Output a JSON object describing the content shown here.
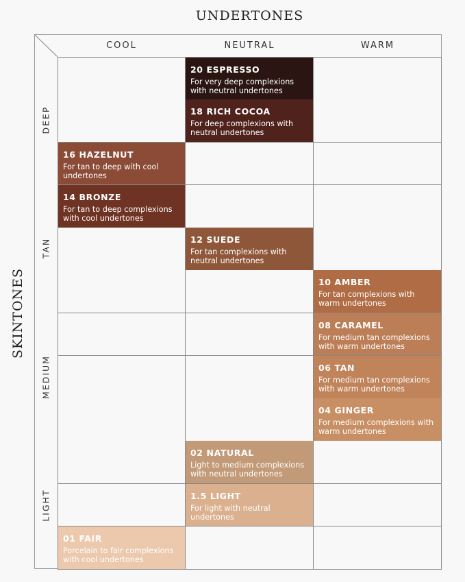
{
  "title_top": "UNDERTONES",
  "title_side": "SKINTONES",
  "columns": [
    "COOL",
    "NEUTRAL",
    "WARM"
  ],
  "row_groups": [
    {
      "label": "DEEP"
    },
    {
      "label": "TAN"
    },
    {
      "label": "MEDIUM"
    },
    {
      "label": "LIGHT"
    }
  ],
  "shades": [
    {
      "row": 1,
      "col": "NEUTRAL",
      "name": "20 ESPRESSO",
      "desc": "For very deep complexions with neutral undertones",
      "color": "#2a1512"
    },
    {
      "row": 2,
      "col": "NEUTRAL",
      "name": "18 RICH COCOA",
      "desc": "For deep complexions with neutral undertones",
      "color": "#4f231b"
    },
    {
      "row": 3,
      "col": "COOL",
      "name": "16 HAZELNUT",
      "desc": "For tan to deep with cool undertones",
      "color": "#8b4b37"
    },
    {
      "row": 4,
      "col": "COOL",
      "name": "14 BRONZE",
      "desc": "For tan to deep complexions with cool undertones",
      "color": "#6f3324"
    },
    {
      "row": 5,
      "col": "NEUTRAL",
      "name": "12 SUEDE",
      "desc": "For tan complexions with neutral undertones",
      "color": "#8f5739"
    },
    {
      "row": 6,
      "col": "WARM",
      "name": "10 AMBER",
      "desc": "For tan complexions with warm undertones",
      "color": "#b06c45"
    },
    {
      "row": 7,
      "col": "WARM",
      "name": "08 CARAMEL",
      "desc": "For medium tan complexions with warm undertones",
      "color": "#bc7e56"
    },
    {
      "row": 8,
      "col": "WARM",
      "name": "06 TAN",
      "desc": "For medium tan complexions with warm undertones",
      "color": "#c0835a"
    },
    {
      "row": 9,
      "col": "WARM",
      "name": "04 GINGER",
      "desc": "For medium complexions with warm undertones",
      "color": "#c98f64"
    },
    {
      "row": 10,
      "col": "NEUTRAL",
      "name": "02 NATURAL",
      "desc": "Light to medium complexions with neutral undertones",
      "color": "#c29a78"
    },
    {
      "row": 11,
      "col": "NEUTRAL",
      "name": "1.5 LIGHT",
      "desc": "For light with neutral undertones",
      "color": "#dab08e"
    },
    {
      "row": 12,
      "col": "COOL",
      "name": "01 FAIR",
      "desc": "Porcelain to fair complexions with cool undertones",
      "color": "#ecc8ad"
    }
  ]
}
